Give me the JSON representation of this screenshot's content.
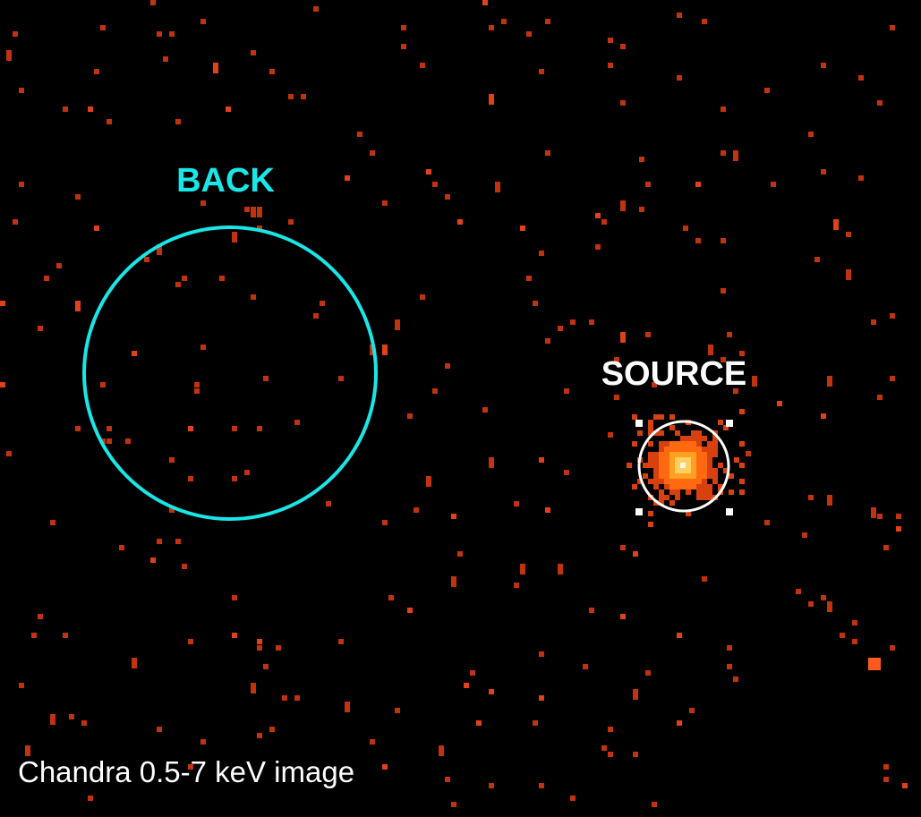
{
  "labels": {
    "back": "BACK",
    "source": "SOURCE"
  },
  "caption": "Chandra 0.5-7 keV image"
}
